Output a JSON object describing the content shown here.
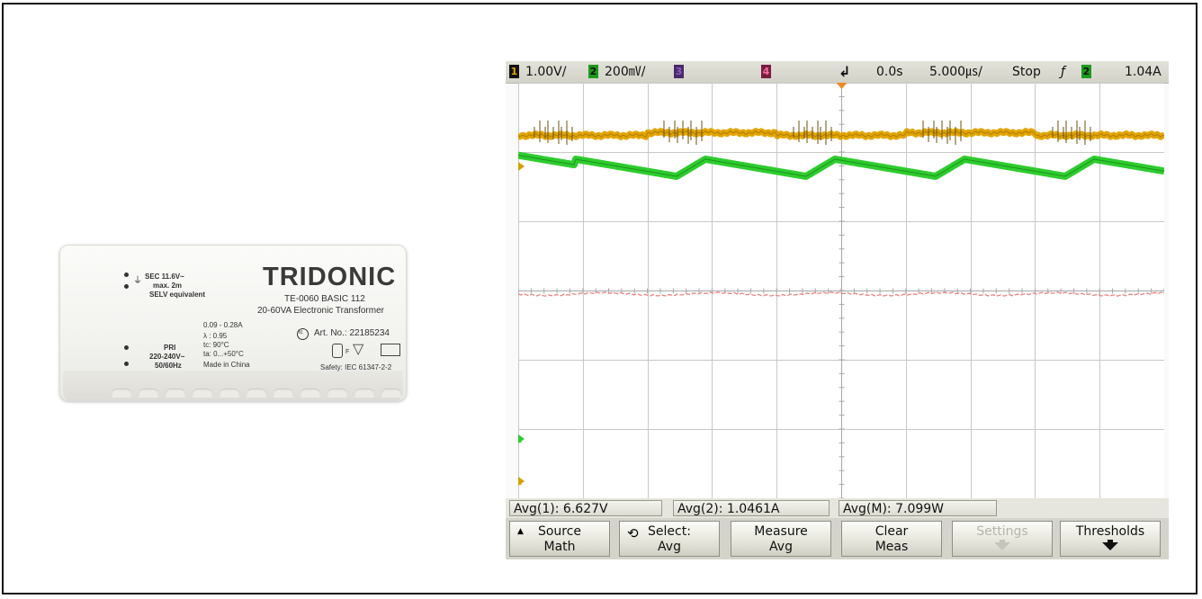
{
  "device": {
    "brand": "TRIDONIC",
    "model": "TE-0060 BASIC 112",
    "description": "20-60VA Electronic Transformer",
    "sec_line1": "SEC 11.6V~",
    "sec_line2": "max. 2m",
    "sec_line3": "SELV equivalent",
    "current": "0.09 - 0.28A",
    "lambda": "λ : 0.95",
    "tc": "tc: 90°C",
    "ta": "ta: 0...+50°C",
    "made_in": "Made in China",
    "pri_line1": "PRI",
    "pri_line2": "220-240V~",
    "pri_line3": "50/60Hz",
    "tc_mark": "tc",
    "art_no": "Art. No.: 22185234",
    "safety": "Safety: IEC 61347-2-2"
  },
  "scope": {
    "topbar": {
      "ch1_num": "1",
      "ch1_scale": "1.00V/",
      "ch2_num": "2",
      "ch2_scale": "200㎷/",
      "ch3_num": "3",
      "ch4_num": "4",
      "time_offset": "0.0s",
      "time_scale": "5.000㎲/",
      "run_state": "Stop",
      "trigger_symbol": "ƒ",
      "trig_ch_num": "2",
      "trig_level": "1.04A"
    },
    "colors": {
      "ch1": "#e2a500",
      "ch2": "#2ecc2e",
      "ch3": "#7b3fa0",
      "ch4": "#e0407a",
      "math": "#f08080"
    },
    "markers": {
      "ch1_ground": "T",
      "ch2_ground": "2",
      "math_ground": "1"
    },
    "measurements": [
      {
        "label": "Avg(1): 6.627V"
      },
      {
        "label": "Avg(2): 1.0461A"
      },
      {
        "label": "Avg(M): 7.099W"
      }
    ],
    "softkeys": [
      {
        "line1": "Source",
        "line2": "Math",
        "icon": "up-arrow-icon"
      },
      {
        "line1": "Select:",
        "line2": "Avg",
        "icon": "rotate-knob-icon"
      },
      {
        "line1": "Measure",
        "line2": "Avg"
      },
      {
        "line1": "Clear",
        "line2": "Meas"
      },
      {
        "line1": "Settings",
        "line2": "",
        "disabled": true
      },
      {
        "line1": "Thresholds",
        "line2": ""
      }
    ]
  }
}
